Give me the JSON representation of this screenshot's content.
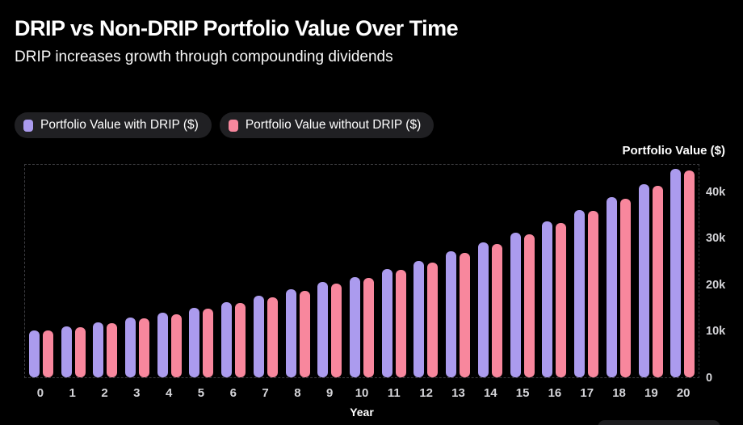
{
  "header": {
    "title": "DRIP vs Non-DRIP Portfolio Value Over Time",
    "subtitle": "DRIP increases growth through compounding dividends"
  },
  "legend": {
    "items": [
      {
        "label": "Portfolio Value with DRIP ($)",
        "color": "#ab9bee"
      },
      {
        "label": "Portfolio Value without DRIP ($)",
        "color": "#f8879d"
      }
    ]
  },
  "colors": {
    "background": "#000000",
    "with_drip": "#ab9bee",
    "without_drip": "#f8879d",
    "tick_text": "#d4d4d8",
    "plot_border": "#3b3b3f",
    "legend_pill_bg": "#202023"
  },
  "chart_data": {
    "type": "bar",
    "title": "DRIP vs Non-DRIP Portfolio Value Over Time",
    "subtitle": "DRIP increases growth through compounding dividends",
    "xlabel": "Year",
    "ylabel": "Portfolio Value ($)",
    "categories": [
      "0",
      "1",
      "2",
      "3",
      "4",
      "5",
      "6",
      "7",
      "8",
      "9",
      "10",
      "11",
      "12",
      "13",
      "14",
      "15",
      "16",
      "17",
      "18",
      "19",
      "20"
    ],
    "series": [
      {
        "name": "Portfolio Value with DRIP ($)",
        "color": "#ab9bee",
        "values": [
          10000,
          10900,
          11800,
          12800,
          13900,
          15000,
          16200,
          17500,
          18900,
          20400,
          21600,
          23300,
          25000,
          27000,
          29000,
          31000,
          33500,
          36000,
          38700,
          41400,
          44800
        ]
      },
      {
        "name": "Portfolio Value without DRIP ($)",
        "color": "#f8879d",
        "values": [
          10000,
          10800,
          11700,
          12600,
          13600,
          14700,
          16000,
          17200,
          18600,
          20100,
          21300,
          23000,
          24700,
          26700,
          28700,
          30800,
          33200,
          35800,
          38400,
          41200,
          44500
        ]
      }
    ],
    "ylim": [
      0,
      46000
    ],
    "yticks": [
      {
        "value": 0,
        "label": "0"
      },
      {
        "value": 10000,
        "label": "10k"
      },
      {
        "value": 20000,
        "label": "20k"
      },
      {
        "value": 30000,
        "label": "30k"
      },
      {
        "value": 40000,
        "label": "40k"
      }
    ],
    "grid": false,
    "legend_position": "top-left"
  }
}
